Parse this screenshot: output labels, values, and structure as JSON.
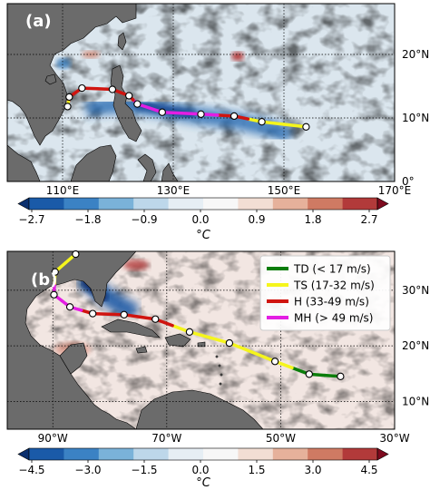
{
  "panel_a": {
    "label": "(a)",
    "x_ticks": [
      "110°E",
      "130°E",
      "150°E",
      "170°E"
    ],
    "y_ticks": [
      "20°N",
      "10°N",
      "0°"
    ],
    "track": [
      {
        "lon": 154,
        "lat": 8.6,
        "category": "TS"
      },
      {
        "lon": 146,
        "lat": 9.4,
        "category": "TS"
      },
      {
        "lon": 141,
        "lat": 10.3,
        "category": "H"
      },
      {
        "lon": 135,
        "lat": 10.6,
        "category": "MH"
      },
      {
        "lon": 128,
        "lat": 10.9,
        "category": "MH"
      },
      {
        "lon": 123.5,
        "lat": 12.2,
        "category": "MH"
      },
      {
        "lon": 122,
        "lat": 13.5,
        "category": "H"
      },
      {
        "lon": 119,
        "lat": 14.5,
        "category": "H"
      },
      {
        "lon": 113.5,
        "lat": 14.7,
        "category": "H"
      },
      {
        "lon": 111.2,
        "lat": 13.3,
        "category": "H"
      },
      {
        "lon": 110.9,
        "lat": 11.8,
        "category": "TS"
      }
    ],
    "colorbar": {
      "ticks": [
        "−2.7",
        "−1.8",
        "−0.9",
        "0.0",
        "0.9",
        "1.8",
        "2.7"
      ],
      "unit": "°C"
    }
  },
  "panel_b": {
    "label": "(b)",
    "x_ticks": [
      "90°W",
      "70°W",
      "50°W",
      "30°W"
    ],
    "y_ticks": [
      "30°N",
      "20°N",
      "10°N"
    ],
    "legend": [
      {
        "key": "TD",
        "label": "TD (< 17 m/s)",
        "color": "#0a7d0a"
      },
      {
        "key": "TS",
        "label": "TS (17-32 m/s)",
        "color": "#f5f51c"
      },
      {
        "key": "H",
        "label": "H (33-49 m/s)",
        "color": "#d0140f"
      },
      {
        "key": "MH",
        "label": "MH (> 49 m/s)",
        "color": "#e31ee3"
      }
    ],
    "track": [
      {
        "lon": -39.5,
        "lat": 14.5,
        "category": "TD"
      },
      {
        "lon": -45,
        "lat": 14.9,
        "category": "TD"
      },
      {
        "lon": -51,
        "lat": 17.2,
        "category": "TS"
      },
      {
        "lon": -59,
        "lat": 20.5,
        "category": "TS"
      },
      {
        "lon": -66,
        "lat": 22.5,
        "category": "TS"
      },
      {
        "lon": -72,
        "lat": 24.8,
        "category": "H"
      },
      {
        "lon": -77.5,
        "lat": 25.6,
        "category": "H"
      },
      {
        "lon": -83,
        "lat": 25.8,
        "category": "H"
      },
      {
        "lon": -87,
        "lat": 27.0,
        "category": "MH"
      },
      {
        "lon": -89.8,
        "lat": 29.2,
        "category": "MH"
      },
      {
        "lon": -89.6,
        "lat": 33.3,
        "category": "TS"
      },
      {
        "lon": -86,
        "lat": 36.5,
        "category": "TS"
      }
    ],
    "colorbar": {
      "ticks": [
        "−4.5",
        "−3.0",
        "−1.5",
        "0.0",
        "1.5",
        "3.0",
        "4.5"
      ],
      "unit": "°C"
    }
  },
  "colors": {
    "TD": "#0a7d0a",
    "TS": "#f5f51c",
    "H": "#d0140f",
    "MH": "#e31ee3",
    "land": "#6b6b6b",
    "colormap": [
      "#0a2f6e",
      "#1a5aa8",
      "#3b82c4",
      "#7ab2d9",
      "#bdd7ea",
      "#e6eef4",
      "#f7f7f7",
      "#f2ded4",
      "#e6b19b",
      "#cf7a63",
      "#b23a3a",
      "#7e0a1e"
    ]
  }
}
